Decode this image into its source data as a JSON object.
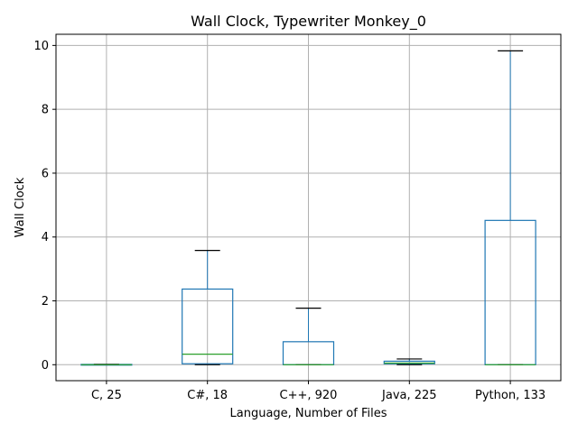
{
  "chart_data": {
    "type": "box",
    "title": "Wall Clock, Typewriter Monkey_0",
    "xlabel": "Language, Number of Files",
    "ylabel": "Wall Clock",
    "ylim": [
      -0.5,
      10.35
    ],
    "yticks": [
      0,
      2,
      4,
      6,
      8,
      10
    ],
    "grid": true,
    "categories": [
      "C, 25",
      "C#, 18",
      "C++, 920",
      "Java, 225",
      "Python, 133"
    ],
    "boxes": [
      {
        "whislo": 0.0,
        "q1": 0.0,
        "med": 0.0,
        "q3": 0.01,
        "whishi": 0.01
      },
      {
        "whislo": 0.0,
        "q1": 0.03,
        "med": 0.33,
        "q3": 2.37,
        "whishi": 3.58
      },
      {
        "whislo": 0.0,
        "q1": 0.0,
        "med": 0.0,
        "q3": 0.72,
        "whishi": 1.77
      },
      {
        "whislo": 0.0,
        "q1": 0.03,
        "med": 0.05,
        "q3": 0.11,
        "whishi": 0.18
      },
      {
        "whislo": 0.0,
        "q1": 0.0,
        "med": 0.0,
        "q3": 4.52,
        "whishi": 9.83
      }
    ],
    "colors": {
      "box": "#1f77b4",
      "median": "#2ca02c",
      "cap": "#000000",
      "grid": "#b0b0b0",
      "axis": "#000000"
    }
  }
}
